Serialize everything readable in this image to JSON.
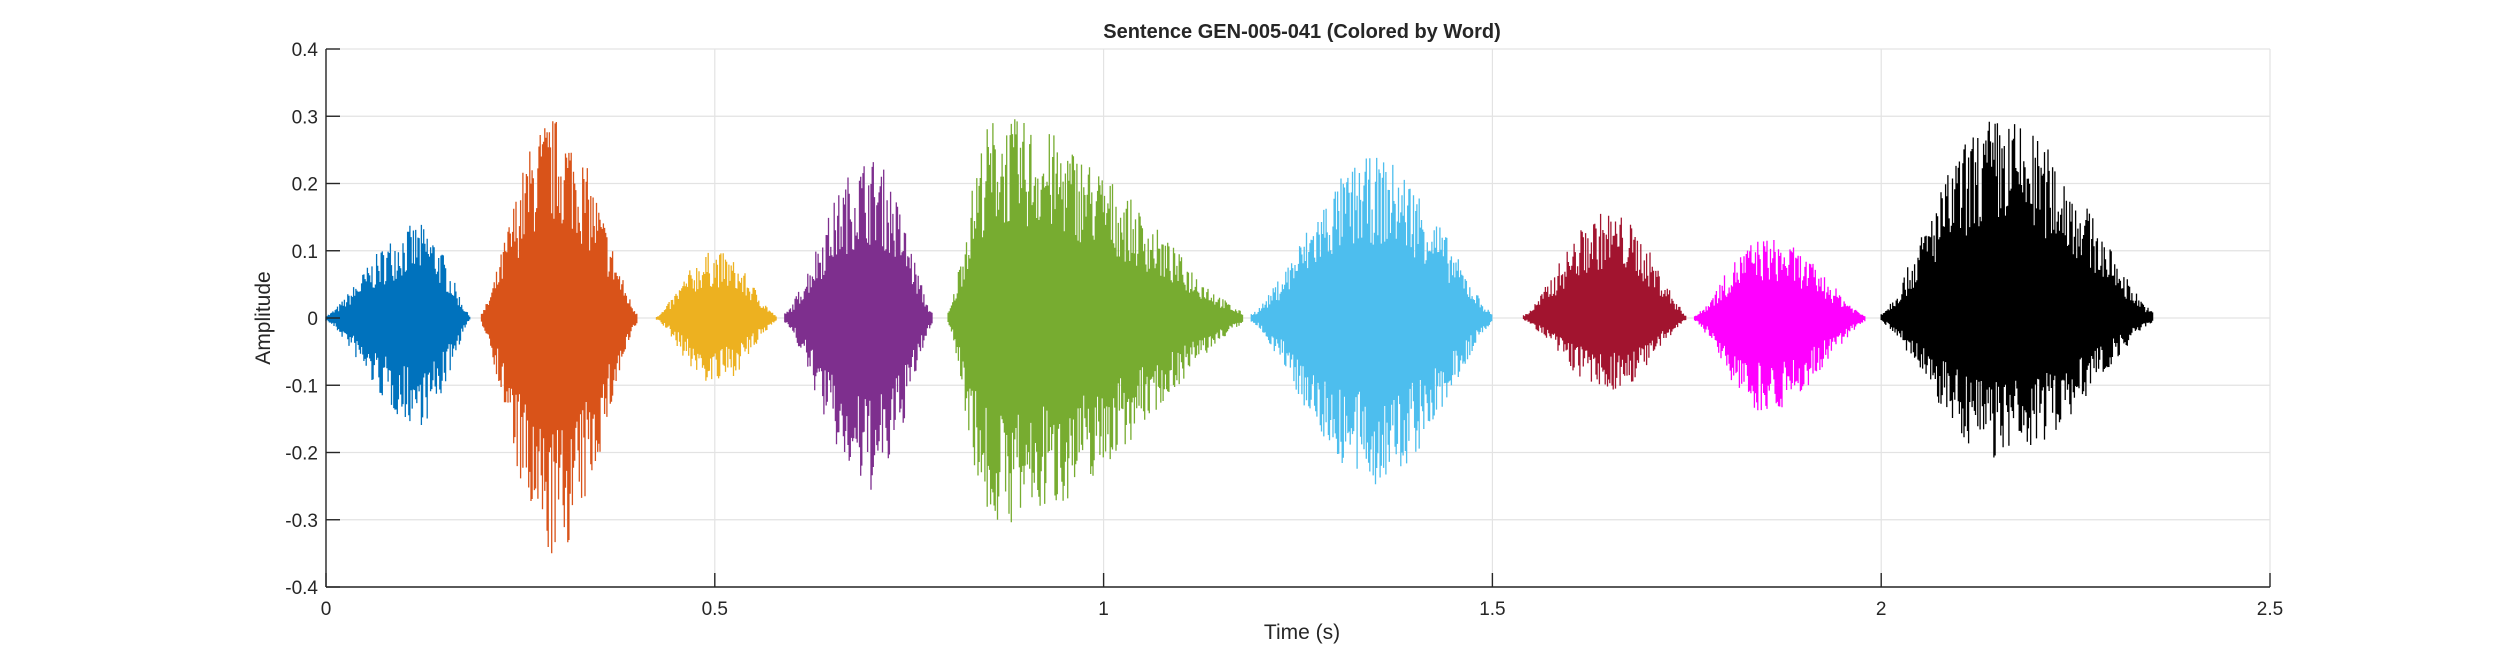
{
  "chart_data": {
    "type": "line",
    "title": "Sentence GEN-005-041 (Colored by Word)",
    "xlabel": "Time (s)",
    "ylabel": "Amplitude",
    "xlim": [
      0,
      2.5
    ],
    "ylim": [
      -0.4,
      0.4
    ],
    "xticks": [
      0,
      0.5,
      1,
      1.5,
      2,
      2.5
    ],
    "xtick_labels": [
      "0",
      "0.5",
      "1",
      "1.5",
      "2",
      "2.5"
    ],
    "yticks": [
      -0.4,
      -0.3,
      -0.2,
      -0.1,
      0,
      0.1,
      0.2,
      0.3,
      0.4
    ],
    "ytick_labels": [
      "-0.4",
      "-0.3",
      "-0.2",
      "-0.1",
      "0",
      "0.1",
      "0.2",
      "0.3",
      "0.4"
    ],
    "grid": true,
    "legend": null,
    "series": [
      {
        "color": "#0072BD",
        "start": 0.0,
        "end": 0.185,
        "peak_max": 0.14,
        "peak_min": -0.16,
        "peak_time": 0.12
      },
      {
        "color": "#D95319",
        "start": 0.2,
        "end": 0.4,
        "peak_max": 0.3,
        "peak_min": -0.36,
        "peak_time": 0.29
      },
      {
        "color": "#EDB120",
        "start": 0.425,
        "end": 0.58,
        "peak_max": 0.1,
        "peak_min": -0.1,
        "peak_time": 0.5
      },
      {
        "color": "#7E2F8E",
        "start": 0.59,
        "end": 0.78,
        "peak_max": 0.24,
        "peak_min": -0.26,
        "peak_time": 0.7
      },
      {
        "color": "#77AC30",
        "start": 0.8,
        "end": 1.18,
        "peak_max": 0.3,
        "peak_min": -0.31,
        "peak_time": 0.86
      },
      {
        "color": "#4DBEEE",
        "start": 1.19,
        "end": 1.5,
        "peak_max": 0.24,
        "peak_min": -0.25,
        "peak_time": 1.35
      },
      {
        "color": "#A2142F",
        "start": 1.54,
        "end": 1.75,
        "peak_max": 0.16,
        "peak_min": -0.11,
        "peak_time": 1.65
      },
      {
        "color": "#FF00FF",
        "start": 1.76,
        "end": 1.98,
        "peak_max": 0.12,
        "peak_min": -0.14,
        "peak_time": 1.85
      },
      {
        "color": "#000000",
        "start": 2.0,
        "end": 2.35,
        "peak_max": 0.3,
        "peak_min": -0.21,
        "peak_time": 2.15
      }
    ]
  }
}
